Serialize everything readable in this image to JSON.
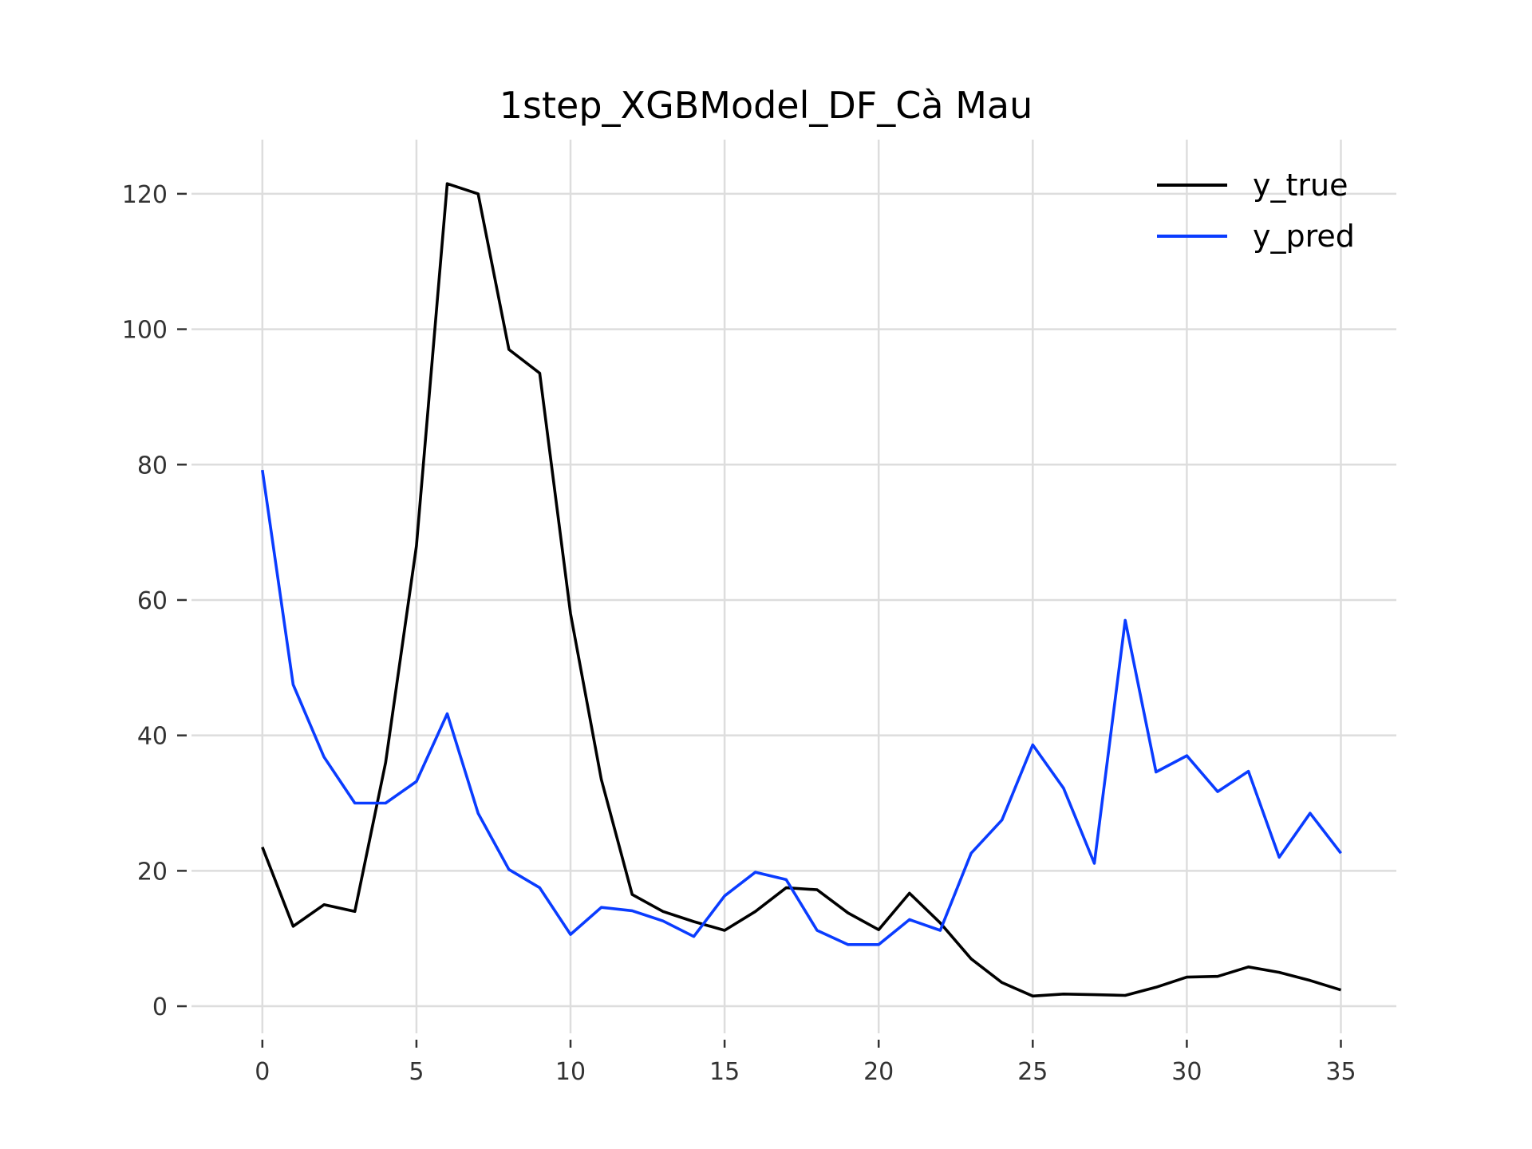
{
  "chart_data": {
    "type": "line",
    "title": "1step_XGBModel_DF_Cà Mau",
    "xlabel": "",
    "ylabel": "",
    "xlim": [
      -2.3,
      36.8
    ],
    "ylim": [
      -4,
      128
    ],
    "xticks": [
      0,
      5,
      10,
      15,
      20,
      25,
      30,
      35
    ],
    "yticks": [
      0,
      20,
      40,
      60,
      80,
      100,
      120
    ],
    "grid": true,
    "legend_position": "top-right",
    "x": [
      0,
      1,
      2,
      3,
      4,
      5,
      6,
      7,
      8,
      9,
      10,
      11,
      12,
      13,
      14,
      15,
      16,
      17,
      18,
      19,
      20,
      21,
      22,
      23,
      24,
      25,
      26,
      27,
      28,
      29,
      30,
      31,
      32,
      33,
      34,
      35
    ],
    "series": [
      {
        "name": "y_true",
        "color": "#000000",
        "values": [
          23.5,
          11.8,
          15,
          14,
          36,
          68,
          121.5,
          120,
          97,
          93.5,
          58,
          33.5,
          16.5,
          14,
          12.5,
          11.2,
          14,
          17.5,
          17.2,
          13.8,
          11.3,
          16.7,
          12.3,
          7,
          3.5,
          1.5,
          1.8,
          1.7,
          1.6,
          2.8,
          4.3,
          4.4,
          5.8,
          5,
          3.8,
          2.4
        ]
      },
      {
        "name": "y_pred",
        "color": "#0a3cff",
        "values": [
          79.2,
          47.5,
          36.8,
          30,
          30,
          33.2,
          43.2,
          28.5,
          20.2,
          17.5,
          10.6,
          14.6,
          14.1,
          12.6,
          10.3,
          16.3,
          19.8,
          18.7,
          11.2,
          9.1,
          9.1,
          12.8,
          11.2,
          22.6,
          27.5,
          38.6,
          32.2,
          21.1,
          57,
          34.6,
          37,
          31.7,
          34.7,
          22,
          28.5,
          22.6
        ]
      }
    ]
  }
}
